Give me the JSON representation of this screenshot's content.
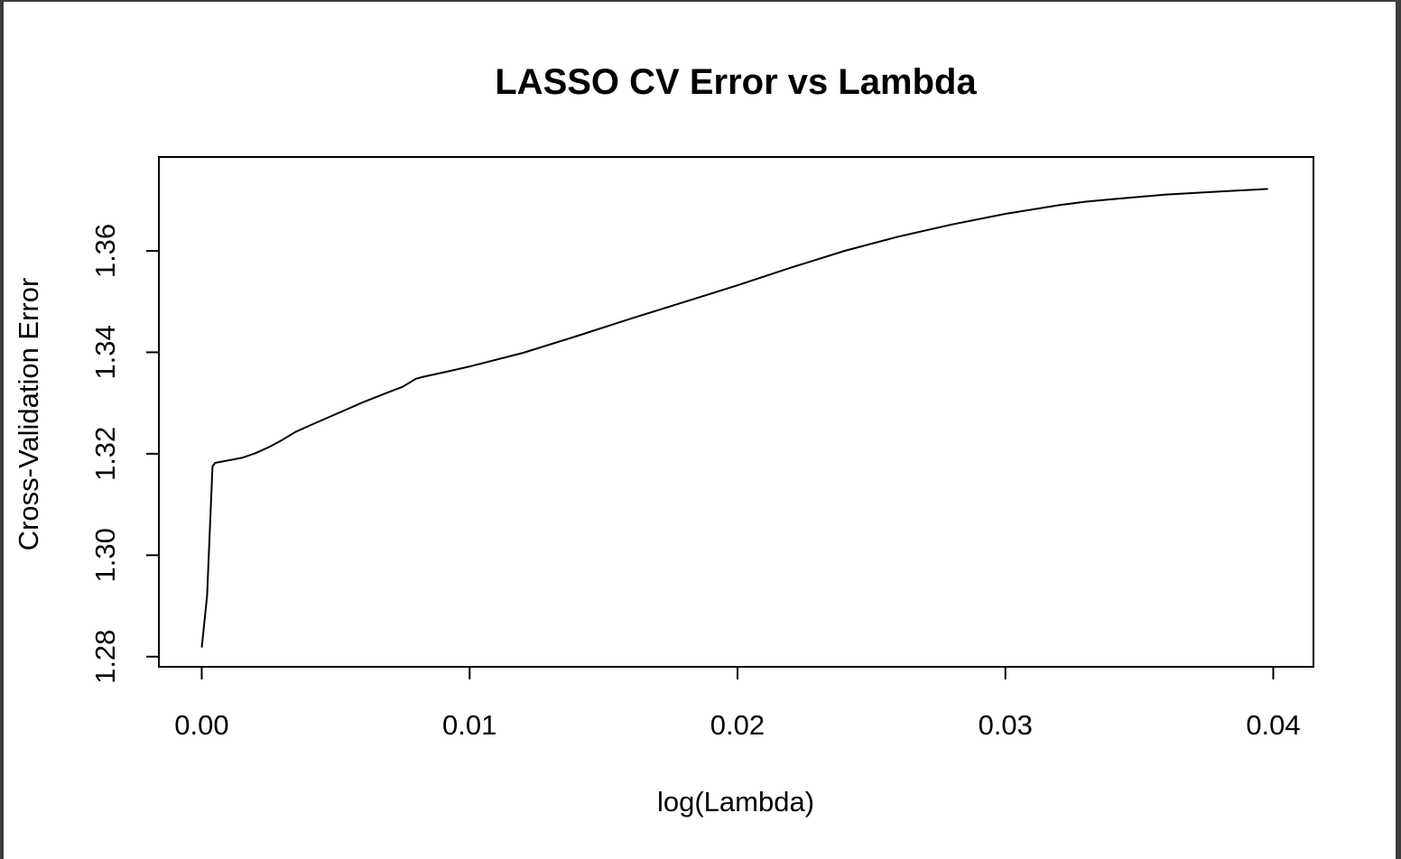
{
  "chart_data": {
    "type": "line",
    "title": "LASSO CV Error vs Lambda",
    "xlabel": "log(Lambda)",
    "ylabel": "Cross-Validation Error",
    "xlim": [
      -0.0016,
      0.0415
    ],
    "ylim": [
      1.278,
      1.3785
    ],
    "x_ticks": [
      0.0,
      0.01,
      0.02,
      0.03,
      0.04
    ],
    "x_tick_labels": [
      "0.00",
      "0.01",
      "0.02",
      "0.03",
      "0.04"
    ],
    "y_ticks": [
      1.28,
      1.3,
      1.32,
      1.34,
      1.36
    ],
    "y_tick_labels": [
      "1.28",
      "1.30",
      "1.32",
      "1.34",
      "1.36"
    ],
    "grid": false,
    "series": [
      {
        "color": "#000000",
        "x": [
          0.0,
          0.0002,
          0.0004,
          0.0005,
          0.001,
          0.0015,
          0.002,
          0.0025,
          0.003,
          0.0035,
          0.004,
          0.005,
          0.006,
          0.007,
          0.0075,
          0.008,
          0.0083,
          0.009,
          0.01,
          0.012,
          0.014,
          0.016,
          0.018,
          0.02,
          0.022,
          0.024,
          0.025,
          0.026,
          0.028,
          0.03,
          0.032,
          0.033,
          0.034,
          0.036,
          0.038,
          0.0398
        ],
        "y": [
          1.2818,
          1.292,
          1.3175,
          1.3182,
          1.3187,
          1.3192,
          1.3201,
          1.3213,
          1.3227,
          1.3243,
          1.3255,
          1.3278,
          1.3301,
          1.3322,
          1.3332,
          1.3348,
          1.3352,
          1.336,
          1.3372,
          1.3399,
          1.3432,
          1.3466,
          1.3499,
          1.3532,
          1.3567,
          1.36,
          1.3614,
          1.3628,
          1.3652,
          1.3673,
          1.369,
          1.3697,
          1.3702,
          1.3711,
          1.3717,
          1.3722
        ]
      }
    ]
  }
}
